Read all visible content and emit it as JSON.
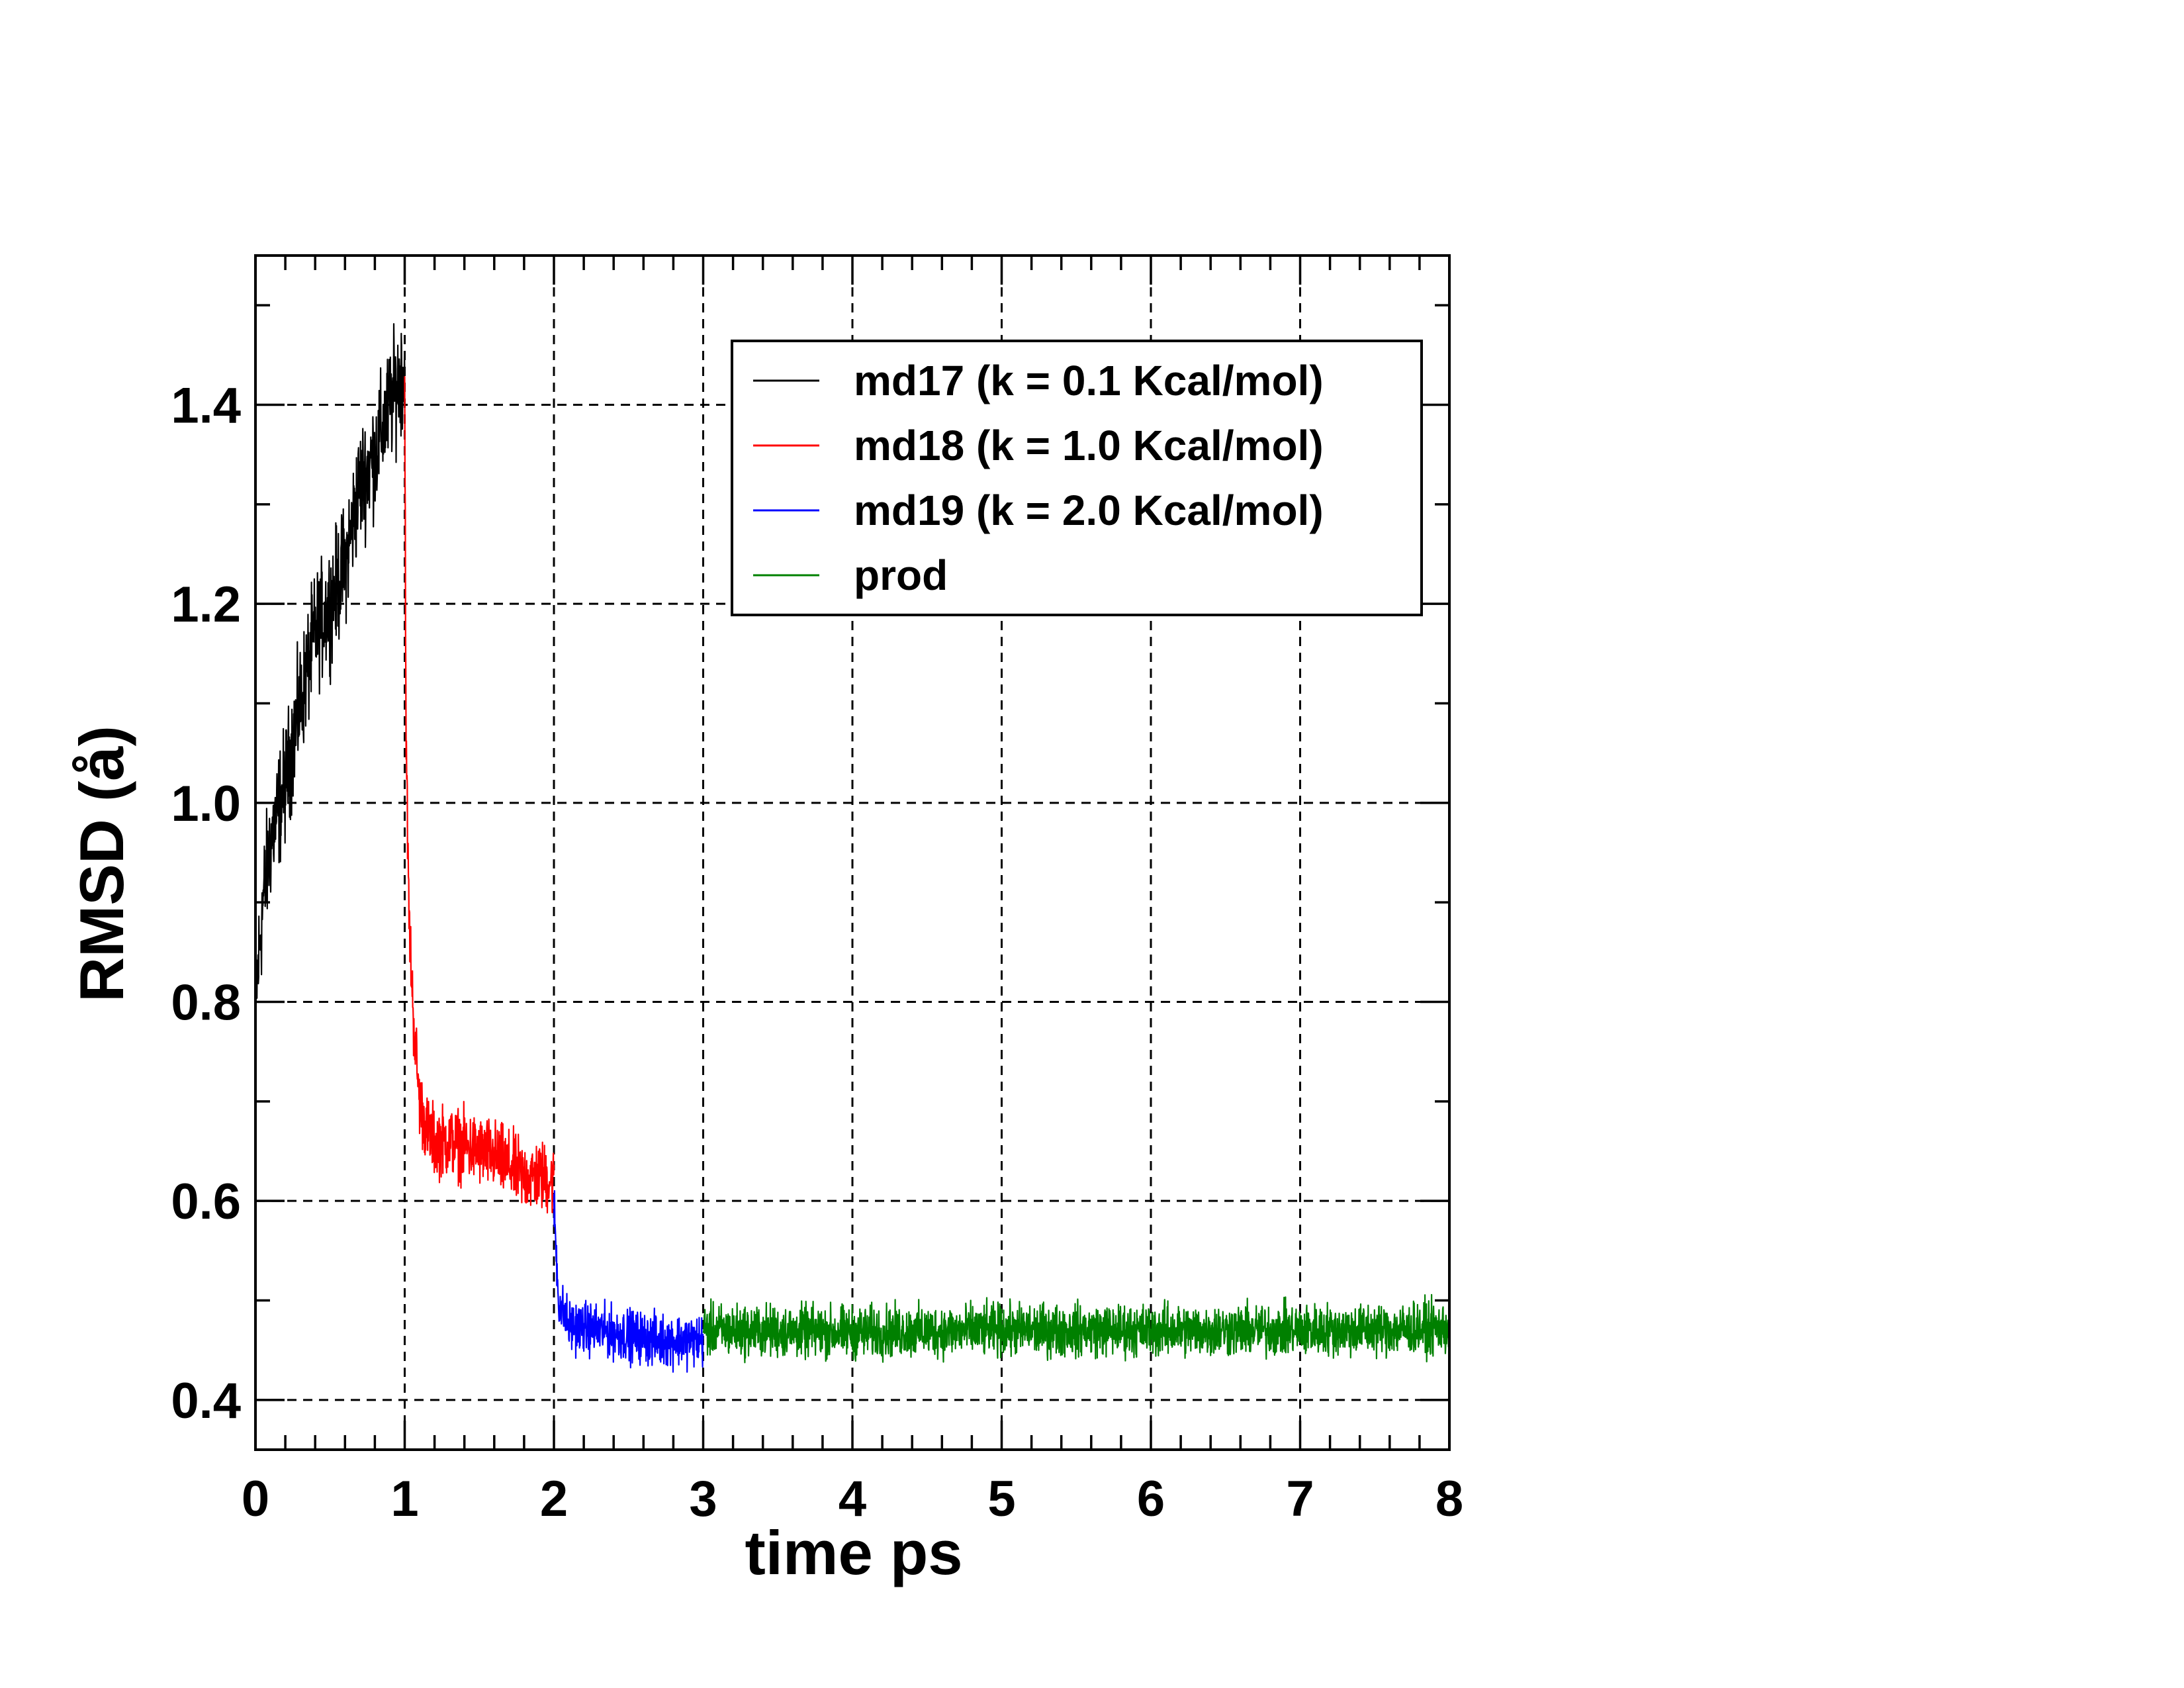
{
  "colors": {
    "background": "#ffffff",
    "axis": "#000000",
    "grid": "#000000",
    "md17": "#000000",
    "md18": "#ff0000",
    "md19": "#0000ff",
    "prod": "#008000"
  },
  "chart_data": {
    "type": "line",
    "title": "",
    "xlabel": "time ps",
    "ylabel": "RMSD (å)",
    "xlim": [
      0,
      8
    ],
    "ylim": [
      0.35,
      1.55
    ],
    "xticks": [
      0,
      1,
      2,
      3,
      4,
      5,
      6,
      7,
      8
    ],
    "xtick_labels": [
      "0",
      "1",
      "2",
      "3",
      "4",
      "5",
      "6",
      "7",
      "8"
    ],
    "yticks": [
      0.4,
      0.6,
      0.8,
      1.0,
      1.2,
      1.4
    ],
    "ytick_labels": [
      "0.4",
      "0.6",
      "0.8",
      "1.0",
      "1.2",
      "1.4"
    ],
    "x_minor_step": 0.2,
    "y_minor_step": 0.1,
    "grid": true,
    "grid_style": "dashed",
    "legend_position": "top-right",
    "series": [
      {
        "name": "md17 (k = 0.1 Kcal/mol)",
        "color": "#000000",
        "x_range": [
          0,
          1
        ],
        "noise": 0.05,
        "x": [
          0.0,
          0.05,
          0.1,
          0.2,
          0.3,
          0.4,
          0.5,
          0.6,
          0.7,
          0.8,
          0.9,
          0.95,
          1.0
        ],
        "y": [
          0.8,
          0.9,
          0.96,
          1.02,
          1.1,
          1.17,
          1.2,
          1.24,
          1.32,
          1.35,
          1.4,
          1.42,
          1.44
        ]
      },
      {
        "name": "md18 (k = 1.0 Kcal/mol)",
        "color": "#ff0000",
        "x_range": [
          1,
          2
        ],
        "noise": 0.03,
        "x": [
          1.0,
          1.01,
          1.03,
          1.06,
          1.1,
          1.15,
          1.2,
          1.3,
          1.4,
          1.5,
          1.6,
          1.7,
          1.8,
          1.9,
          2.0
        ],
        "y": [
          1.42,
          1.05,
          0.88,
          0.78,
          0.7,
          0.67,
          0.66,
          0.66,
          0.655,
          0.65,
          0.645,
          0.635,
          0.625,
          0.625,
          0.62
        ]
      },
      {
        "name": "md19 (k = 2.0 Kcal/mol)",
        "color": "#0000ff",
        "x_range": [
          2,
          3
        ],
        "noise": 0.022,
        "x": [
          2.0,
          2.03,
          2.1,
          2.3,
          2.5,
          2.7,
          2.9,
          3.0
        ],
        "y": [
          0.6,
          0.5,
          0.475,
          0.47,
          0.465,
          0.46,
          0.46,
          0.46
        ]
      },
      {
        "name": "prod",
        "color": "#008000",
        "x_range": [
          3,
          8
        ],
        "noise": 0.022,
        "x": [
          3.0,
          4.0,
          5.0,
          6.0,
          7.0,
          8.0
        ],
        "y": [
          0.47,
          0.468,
          0.47,
          0.47,
          0.47,
          0.472
        ]
      }
    ]
  }
}
